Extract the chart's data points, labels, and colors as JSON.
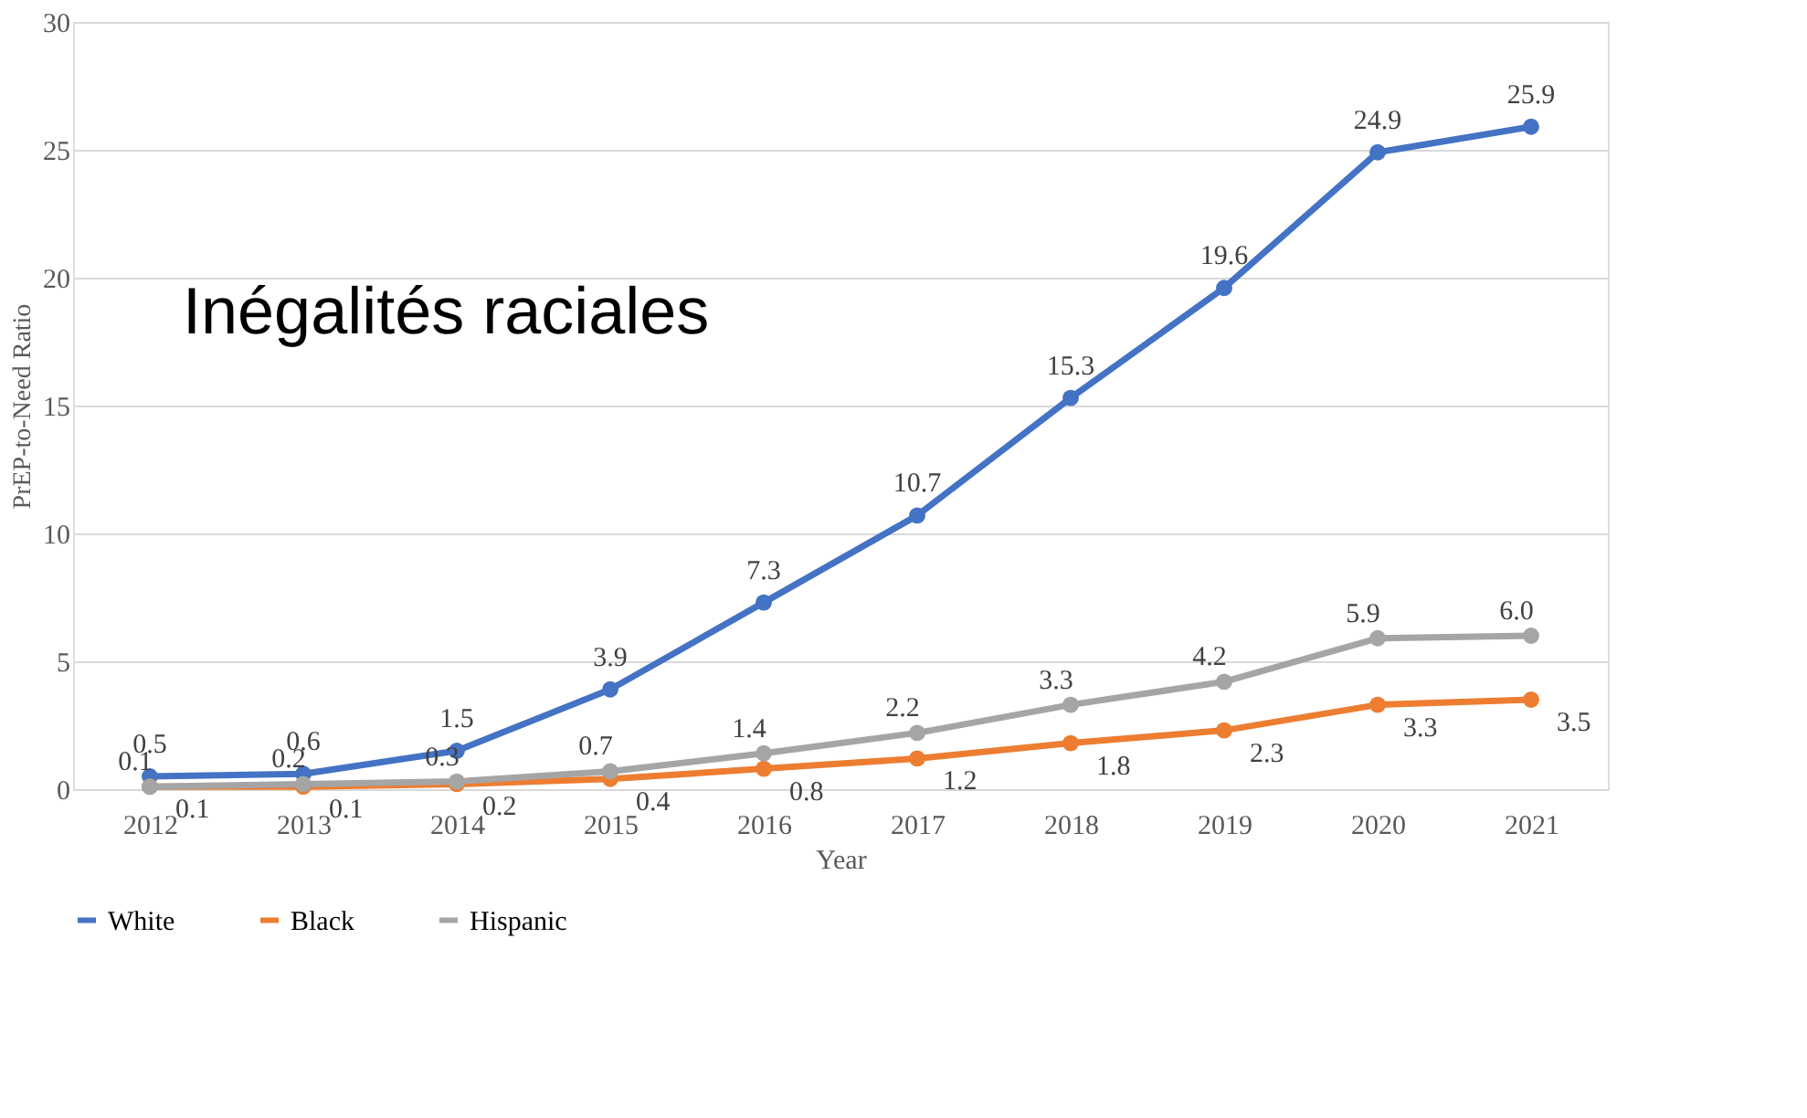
{
  "chart_data": {
    "type": "line",
    "title": "Inégalités raciales",
    "xlabel": "Year",
    "ylabel": "PrEP-to-Need Ratio",
    "categories": [
      "2012",
      "2013",
      "2014",
      "2015",
      "2016",
      "2017",
      "2018",
      "2019",
      "2020",
      "2021"
    ],
    "series": [
      {
        "name": "White",
        "color": "#4472c4",
        "values": [
          0.5,
          0.6,
          1.5,
          3.9,
          7.3,
          10.7,
          15.3,
          19.6,
          24.9,
          25.9
        ],
        "value_labels": [
          "0.5",
          "0.6",
          "1.5",
          "3.9",
          "7.3",
          "10.7",
          "15.3",
          "19.6",
          "24.9",
          "25.9"
        ]
      },
      {
        "name": "Black",
        "color": "#ed7d31",
        "values": [
          0.1,
          0.1,
          0.2,
          0.4,
          0.8,
          1.2,
          1.8,
          2.3,
          3.3,
          3.5
        ],
        "value_labels": [
          "0.1",
          "0.1",
          "0.2",
          "0.4",
          "0.8",
          "1.2",
          "1.8",
          "2.3",
          "3.3",
          "3.5"
        ]
      },
      {
        "name": "Hispanic",
        "color": "#a5a5a5",
        "values": [
          0.1,
          0.2,
          0.3,
          0.7,
          1.4,
          2.2,
          3.3,
          4.2,
          5.9,
          6.0
        ],
        "value_labels": [
          "0.1",
          "0.2",
          "0.3",
          "0.7",
          "1.4",
          "2.2",
          "3.3",
          "4.2",
          "5.9",
          "6.0"
        ]
      }
    ],
    "ylim": [
      0,
      30
    ],
    "yticks": [
      0,
      5,
      10,
      15,
      20,
      25,
      30
    ],
    "grid": "y",
    "legend": "bottom",
    "marker": "circle",
    "line_style": "solid"
  }
}
